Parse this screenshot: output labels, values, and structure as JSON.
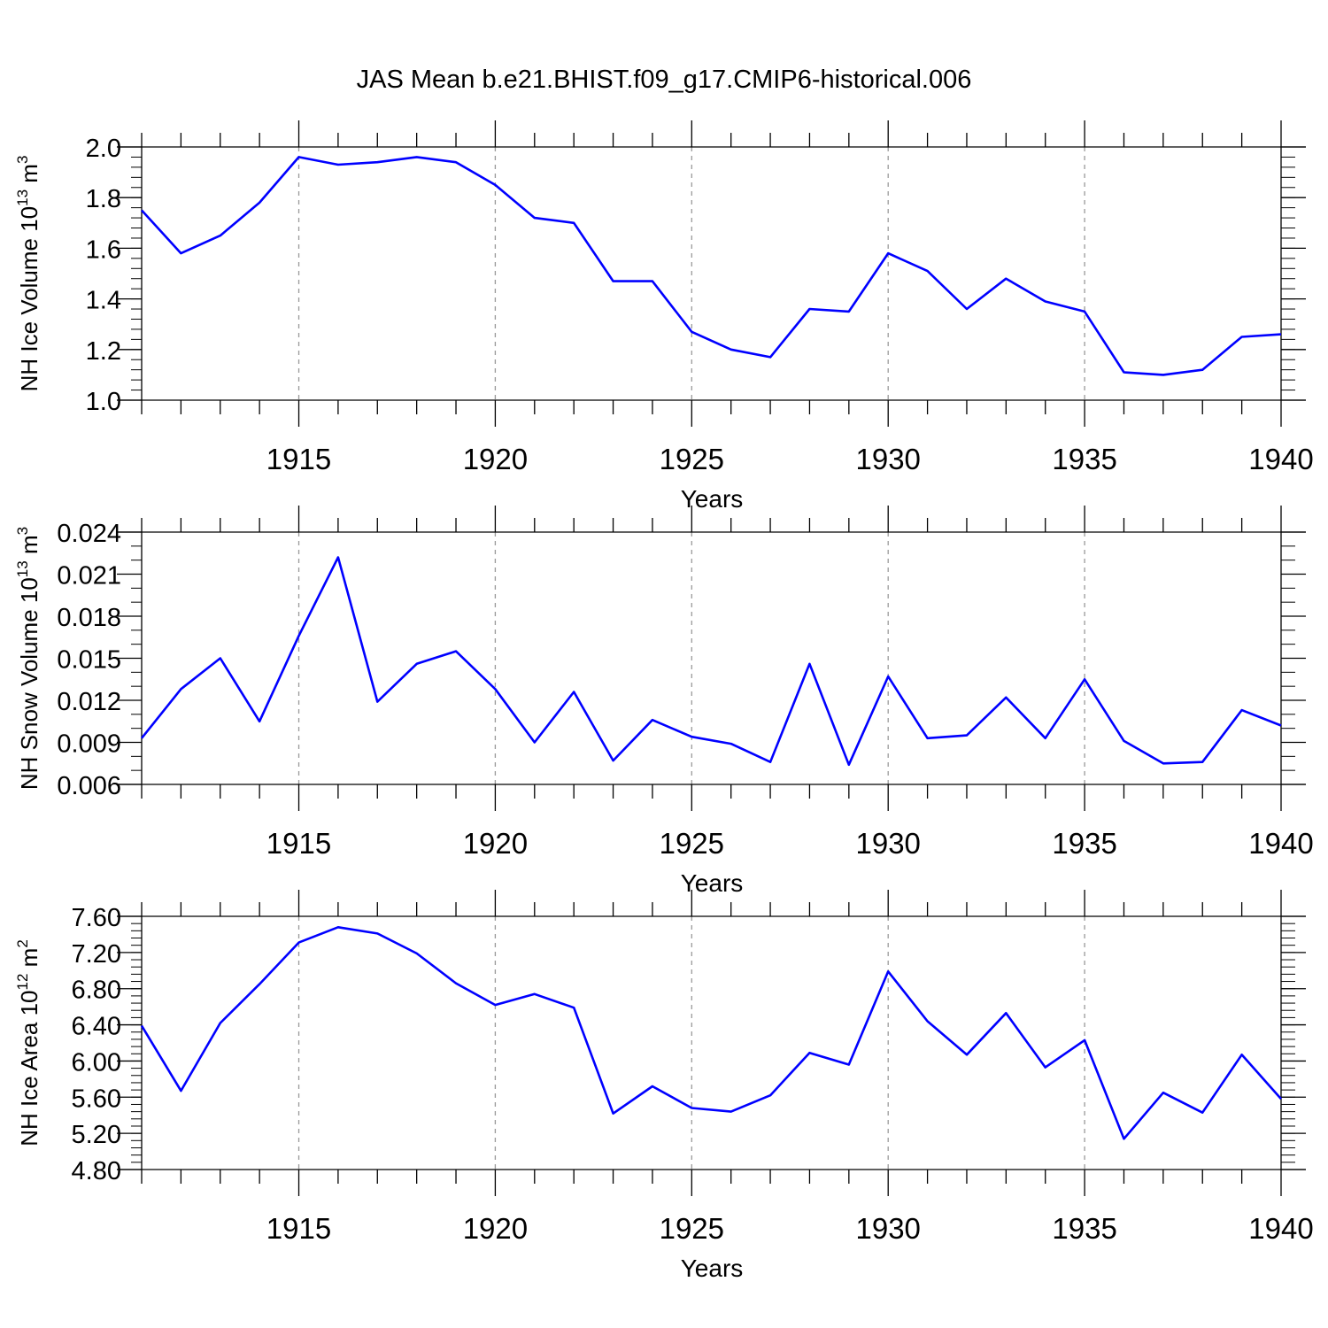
{
  "title": "JAS Mean b.e21.BHIST.f09_g17.CMIP6-historical.006",
  "line_color": "#0000ff",
  "grid_color": "#999999",
  "chart_data": [
    {
      "type": "line",
      "id": "ice-volume",
      "title": "",
      "xlabel": "Years",
      "ylabel_main": "NH Ice Volume 10",
      "ylabel_sup": "13",
      "ylabel_tail": " m",
      "ylabel_sup2": "3",
      "xlim": [
        1911,
        1940
      ],
      "ylim": [
        1.0,
        2.0
      ],
      "yticks": [
        1.0,
        1.2,
        1.4,
        1.6,
        1.8,
        2.0
      ],
      "ytick_labels": [
        "1.0",
        "1.2",
        "1.4",
        "1.6",
        "1.8",
        "2.0"
      ],
      "yminor_step": 0.04,
      "xticks": [
        1915,
        1920,
        1925,
        1930,
        1935,
        1940
      ],
      "xtick_labels": [
        "1915",
        "1920",
        "1925",
        "1930",
        "1935",
        "1940"
      ],
      "grid": "vertical dashed at major x ticks",
      "x": [
        1911,
        1912,
        1913,
        1914,
        1915,
        1916,
        1917,
        1918,
        1919,
        1920,
        1921,
        1922,
        1923,
        1924,
        1925,
        1926,
        1927,
        1928,
        1929,
        1930,
        1931,
        1932,
        1933,
        1934,
        1935,
        1936,
        1937,
        1938,
        1939,
        1940
      ],
      "values": [
        1.75,
        1.58,
        1.65,
        1.78,
        1.96,
        1.93,
        1.94,
        1.96,
        1.94,
        1.85,
        1.72,
        1.7,
        1.47,
        1.47,
        1.27,
        1.2,
        1.17,
        1.36,
        1.35,
        1.58,
        1.51,
        1.36,
        1.48,
        1.39,
        1.35,
        1.11,
        1.1,
        1.12,
        1.25,
        1.26
      ]
    },
    {
      "type": "line",
      "id": "snow-volume",
      "title": "",
      "xlabel": "Years",
      "ylabel_main": "NH Snow Volume 10",
      "ylabel_sup": "13",
      "ylabel_tail": " m",
      "ylabel_sup2": "3",
      "xlim": [
        1911,
        1940
      ],
      "ylim": [
        0.006,
        0.024
      ],
      "yticks": [
        0.006,
        0.009,
        0.012,
        0.015,
        0.018,
        0.021,
        0.024
      ],
      "ytick_labels": [
        "0.006",
        "0.009",
        "0.012",
        "0.015",
        "0.018",
        "0.021",
        "0.024"
      ],
      "yminor_step": 0.001,
      "xticks": [
        1915,
        1920,
        1925,
        1930,
        1935,
        1940
      ],
      "xtick_labels": [
        "1915",
        "1920",
        "1925",
        "1930",
        "1935",
        "1940"
      ],
      "grid": "vertical dashed at major x ticks",
      "x": [
        1911,
        1912,
        1913,
        1914,
        1915,
        1916,
        1917,
        1918,
        1919,
        1920,
        1921,
        1922,
        1923,
        1924,
        1925,
        1926,
        1927,
        1928,
        1929,
        1930,
        1931,
        1932,
        1933,
        1934,
        1935,
        1936,
        1937,
        1938,
        1939,
        1940
      ],
      "values": [
        0.0093,
        0.0128,
        0.015,
        0.0105,
        0.0166,
        0.0222,
        0.0119,
        0.0146,
        0.0155,
        0.0128,
        0.009,
        0.0126,
        0.0077,
        0.0106,
        0.0094,
        0.0089,
        0.0076,
        0.0146,
        0.0074,
        0.0137,
        0.0093,
        0.0095,
        0.0122,
        0.0093,
        0.0135,
        0.0091,
        0.0075,
        0.0076,
        0.0113,
        0.0102
      ]
    },
    {
      "type": "line",
      "id": "ice-area",
      "title": "",
      "xlabel": "Years",
      "ylabel_main": "NH Ice Area 10",
      "ylabel_sup": "12",
      "ylabel_tail": " m",
      "ylabel_sup2": "2",
      "xlim": [
        1911,
        1940
      ],
      "ylim": [
        4.8,
        7.6
      ],
      "yticks": [
        4.8,
        5.2,
        5.6,
        6.0,
        6.4,
        6.8,
        7.2,
        7.6
      ],
      "ytick_labels": [
        "4.80",
        "5.20",
        "5.60",
        "6.00",
        "6.40",
        "6.80",
        "7.20",
        "7.60"
      ],
      "yminor_step": 0.08,
      "xticks": [
        1915,
        1920,
        1925,
        1930,
        1935,
        1940
      ],
      "xtick_labels": [
        "1915",
        "1920",
        "1925",
        "1930",
        "1935",
        "1940"
      ],
      "grid": "vertical dashed at major x ticks",
      "x": [
        1911,
        1912,
        1913,
        1914,
        1915,
        1916,
        1917,
        1918,
        1919,
        1920,
        1921,
        1922,
        1923,
        1924,
        1925,
        1926,
        1927,
        1928,
        1929,
        1930,
        1931,
        1932,
        1933,
        1934,
        1935,
        1936,
        1937,
        1938,
        1939,
        1940
      ],
      "values": [
        6.39,
        5.67,
        6.42,
        6.85,
        7.31,
        7.48,
        7.41,
        7.19,
        6.86,
        6.62,
        6.74,
        6.59,
        5.42,
        5.72,
        5.48,
        5.44,
        5.62,
        6.09,
        5.96,
        6.99,
        6.44,
        6.07,
        6.53,
        5.93,
        6.23,
        5.14,
        5.65,
        5.43,
        6.07,
        5.58
      ]
    }
  ]
}
